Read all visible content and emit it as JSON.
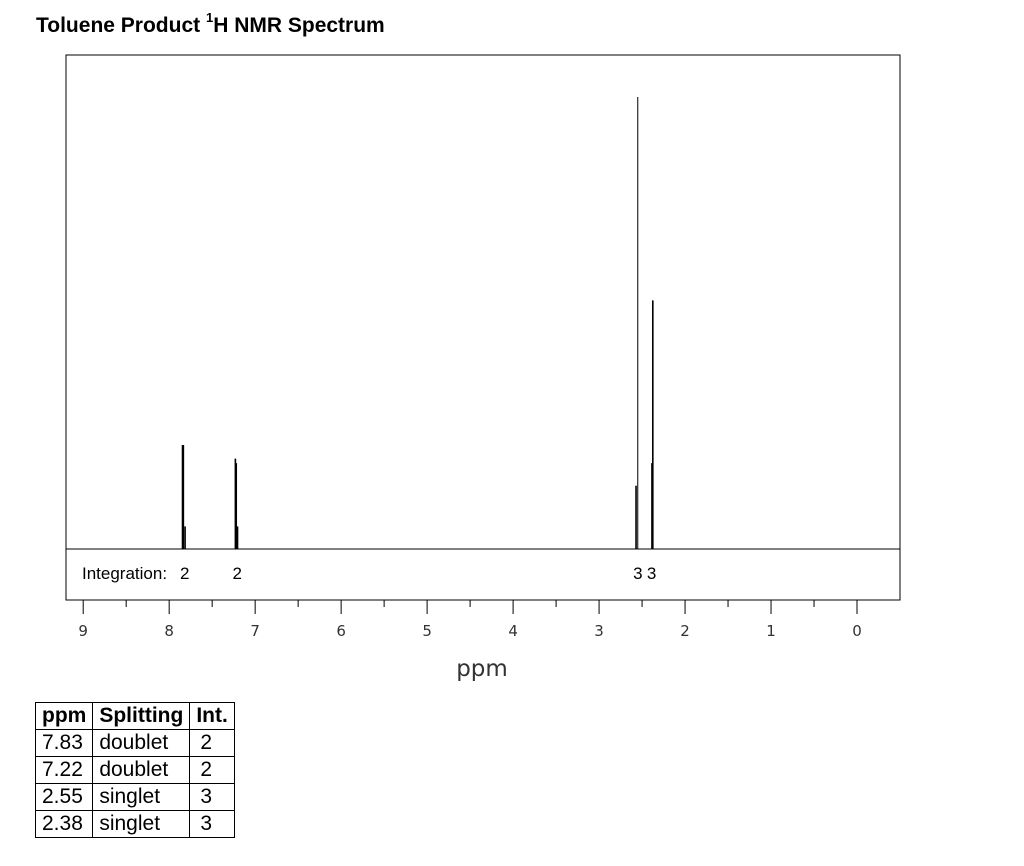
{
  "chart_data": {
    "type": "nmr_spectrum",
    "title": "Toluene Product",
    "title_nucleus_mass": "1",
    "title_suffix": "H NMR Spectrum",
    "xlabel": "ppm",
    "xlim": [
      9.2,
      -0.5
    ],
    "x_reversed": true,
    "major_ticks": [
      9,
      8,
      7,
      6,
      5,
      4,
      3,
      2,
      1,
      0
    ],
    "minor_ticks": [
      8.5,
      7.5,
      6.5,
      5.5,
      4.5,
      3.5,
      2.5,
      1.5,
      0.5
    ],
    "integration_label": "Integration:",
    "integration": [
      {
        "ppm": 7.83,
        "value": "2"
      },
      {
        "ppm": 7.22,
        "value": "2"
      },
      {
        "ppm": 2.56,
        "value": "3"
      },
      {
        "ppm": 2.4,
        "value": "3"
      }
    ],
    "peaks": [
      {
        "ppm": 7.845,
        "height": 0.23
      },
      {
        "ppm": 7.835,
        "height": 0.23
      },
      {
        "ppm": 7.815,
        "height": 0.05
      },
      {
        "ppm": 7.23,
        "height": 0.2
      },
      {
        "ppm": 7.22,
        "height": 0.19
      },
      {
        "ppm": 7.205,
        "height": 0.05
      },
      {
        "ppm": 2.55,
        "height": 1.0
      },
      {
        "ppm": 2.57,
        "height": 0.14
      },
      {
        "ppm": 2.375,
        "height": 0.55
      },
      {
        "ppm": 2.385,
        "height": 0.19
      }
    ],
    "table": {
      "headers": [
        "ppm",
        "Splitting",
        "Int."
      ],
      "rows": [
        [
          "7.83",
          "doublet",
          "2"
        ],
        [
          "7.22",
          "doublet",
          "2"
        ],
        [
          "2.55",
          "singlet",
          "3"
        ],
        [
          "2.38",
          "singlet",
          "3"
        ]
      ]
    }
  }
}
